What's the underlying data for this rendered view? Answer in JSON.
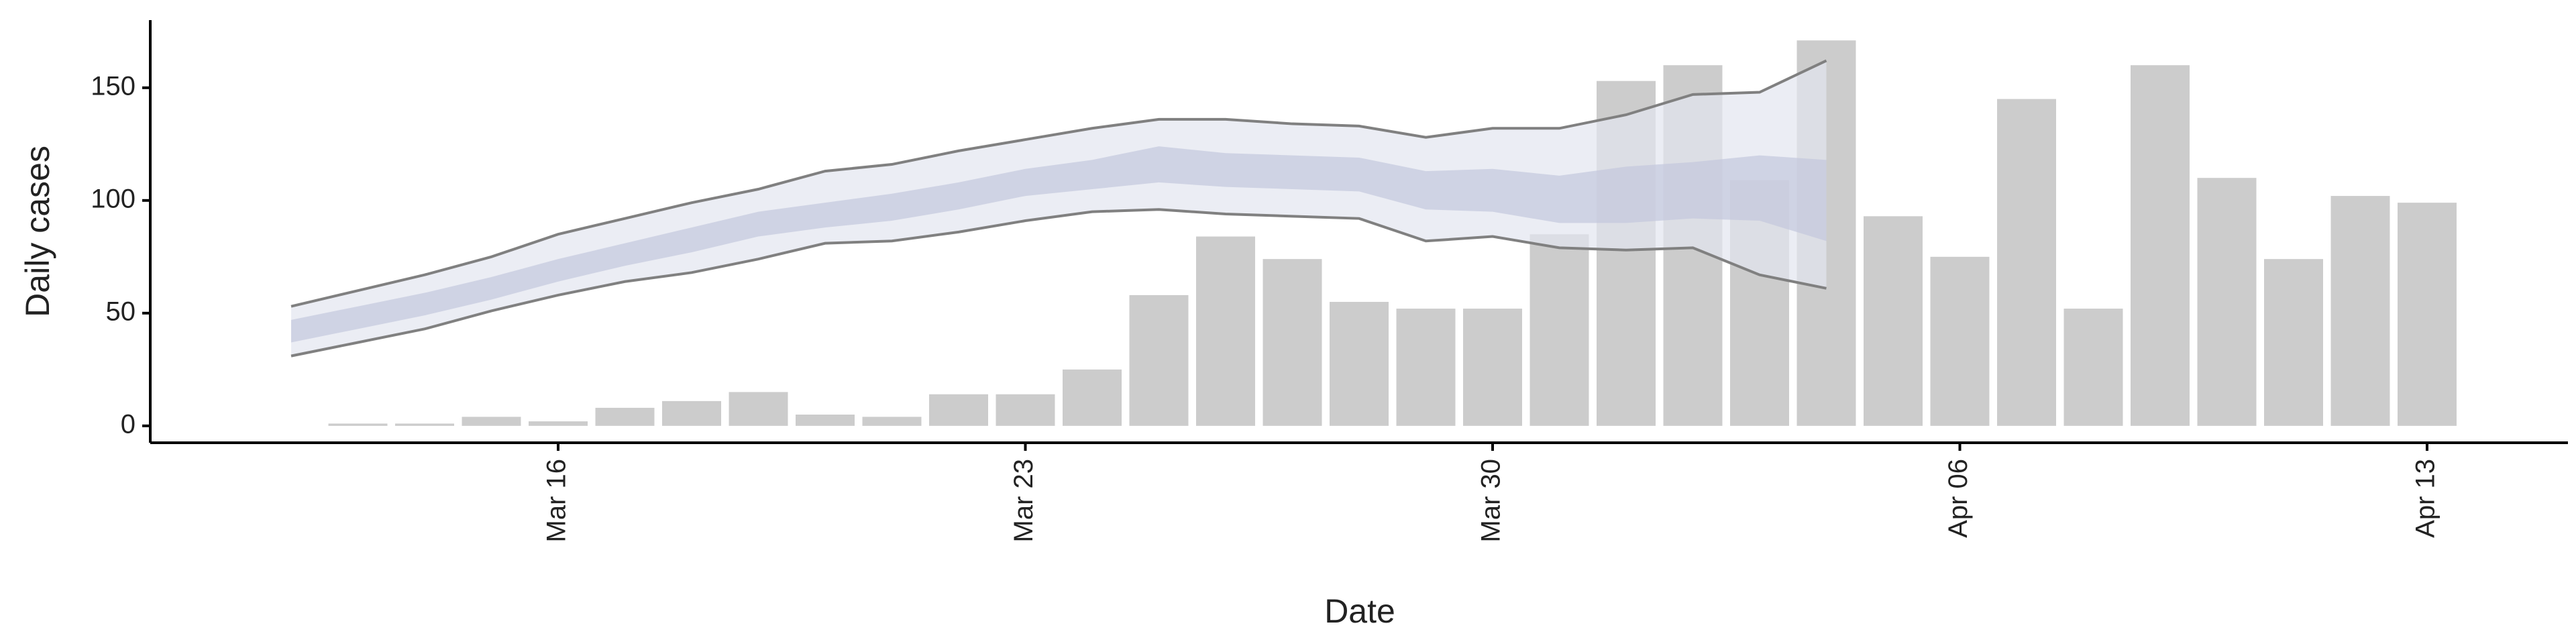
{
  "chart_data": {
    "type": "combo",
    "x_label": "Date",
    "y_label": "Daily cases",
    "x": [
      "Mar 12",
      "Mar 13",
      "Mar 14",
      "Mar 15",
      "Mar 16",
      "Mar 17",
      "Mar 18",
      "Mar 19",
      "Mar 20",
      "Mar 21",
      "Mar 22",
      "Mar 23",
      "Mar 24",
      "Mar 25",
      "Mar 26",
      "Mar 27",
      "Mar 28",
      "Mar 29",
      "Mar 30",
      "Mar 31",
      "Apr 01",
      "Apr 02",
      "Apr 03",
      "Apr 04",
      "Apr 05",
      "Apr 06",
      "Apr 07",
      "Apr 08",
      "Apr 09",
      "Apr 10",
      "Apr 11",
      "Apr 12",
      "Apr 13"
    ],
    "xticks": [
      "Mar 16",
      "Mar 23",
      "Mar 30",
      "Apr 06",
      "Apr 13"
    ],
    "ylim": [
      -7.5,
      180
    ],
    "yticks": [
      0,
      50,
      100,
      150
    ],
    "series": [
      {
        "type": "bar",
        "color": "#cccccc",
        "values": [
          null,
          1,
          1,
          4,
          2,
          8,
          11,
          15,
          5,
          4,
          14,
          14,
          25,
          58,
          84,
          74,
          55,
          52,
          52,
          85,
          153,
          160,
          109,
          171,
          93,
          75,
          145,
          52,
          160,
          110,
          74,
          102,
          99
        ]
      },
      {
        "type": "band",
        "color": "#e3e5f0",
        "line_color": "#808080",
        "lower": [
          31,
          37,
          43,
          51,
          58,
          64,
          68,
          74,
          81,
          82,
          86,
          91,
          95,
          96,
          94,
          93,
          92,
          82,
          84,
          79,
          78,
          79,
          67,
          61,
          null,
          null,
          null,
          null,
          null,
          null,
          null,
          null,
          null
        ],
        "upper": [
          53,
          60,
          67,
          75,
          85,
          92,
          99,
          105,
          113,
          116,
          122,
          127,
          132,
          136,
          136,
          134,
          133,
          128,
          132,
          132,
          138,
          147,
          148,
          162,
          null,
          null,
          null,
          null,
          null,
          null,
          null,
          null,
          null
        ]
      },
      {
        "type": "band",
        "color": "#c3c8dd",
        "lower": [
          37,
          43,
          49,
          56,
          64,
          71,
          77,
          84,
          88,
          91,
          96,
          102,
          105,
          108,
          106,
          105,
          104,
          96,
          95,
          90,
          90,
          92,
          91,
          82,
          null,
          null,
          null,
          null,
          null,
          null,
          null,
          null,
          null
        ],
        "upper": [
          47,
          53,
          59,
          66,
          74,
          81,
          88,
          95,
          99,
          103,
          108,
          114,
          118,
          124,
          121,
          120,
          119,
          113,
          114,
          111,
          115,
          117,
          120,
          118,
          null,
          null,
          null,
          null,
          null,
          null,
          null,
          null,
          null
        ]
      }
    ]
  }
}
